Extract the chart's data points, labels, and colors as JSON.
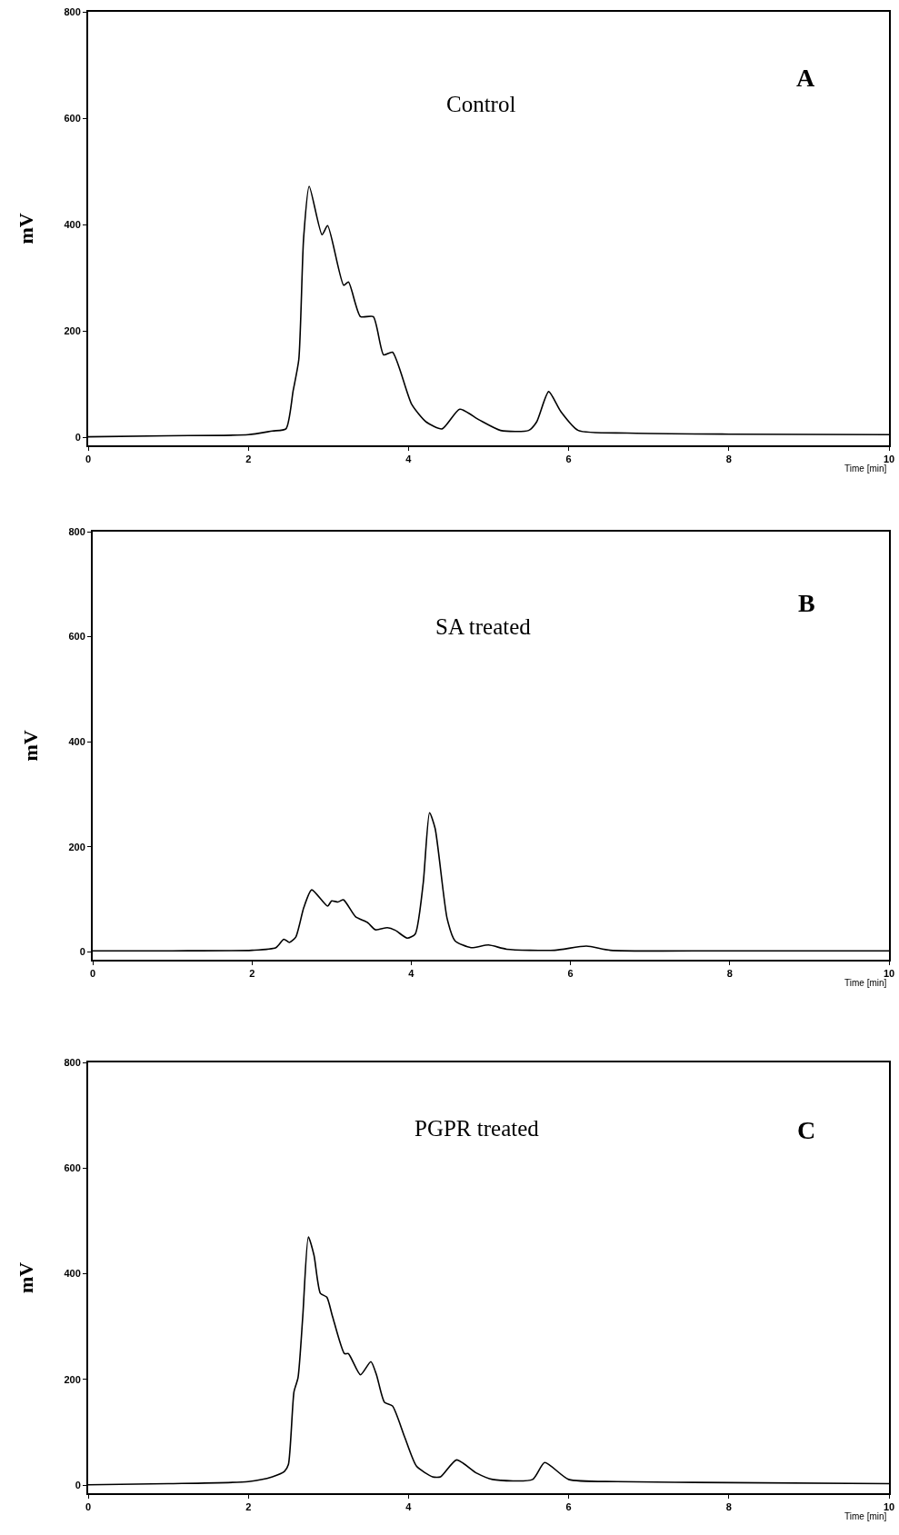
{
  "chart_data": [
    {
      "type": "line",
      "title": "Control",
      "annotations": [
        "A"
      ],
      "xlabel": "Time [min]",
      "ylabel": "mV",
      "xlim": [
        0,
        10
      ],
      "xticks": [
        0,
        2,
        4,
        6,
        8,
        10
      ],
      "ylim": [
        -15,
        800
      ],
      "yticks": [
        0,
        200,
        400,
        600,
        800
      ],
      "grid": false,
      "x": [
        0,
        1,
        2,
        2.3,
        2.47,
        2.56,
        2.63,
        2.69,
        2.76,
        2.92,
        2.99,
        3.19,
        3.25,
        3.4,
        3.56,
        3.69,
        3.8,
        4.04,
        4.22,
        4.42,
        4.64,
        4.88,
        5.15,
        5.5,
        5.6,
        5.75,
        5.9,
        6.12,
        6.73,
        8,
        10
      ],
      "series": [
        {
          "color": "#000000",
          "values": [
            1,
            3,
            5,
            12,
            16,
            88,
            146,
            374,
            472,
            381,
            398,
            286,
            292,
            227,
            227,
            155,
            160,
            62,
            29,
            16,
            53,
            33,
            13,
            13,
            29,
            86,
            49,
            13,
            8,
            6,
            5
          ]
        }
      ]
    },
    {
      "type": "line",
      "title": "SA treated",
      "annotations": [
        "B"
      ],
      "xlabel": "Time [min]",
      "ylabel": "mV",
      "xlim": [
        0,
        10
      ],
      "xticks": [
        0,
        2,
        4,
        6,
        8,
        10
      ],
      "ylim": [
        -15,
        800
      ],
      "yticks": [
        0,
        200,
        400,
        600,
        800
      ],
      "grid": false,
      "x": [
        0,
        1,
        2,
        2.3,
        2.4,
        2.47,
        2.55,
        2.65,
        2.75,
        2.95,
        3,
        3.08,
        3.15,
        3.3,
        3.45,
        3.55,
        3.7,
        3.8,
        3.95,
        4.05,
        4.15,
        4.23,
        4.3,
        4.45,
        4.55,
        4.75,
        4.97,
        5.2,
        5.8,
        6.2,
        6.5,
        8,
        10
      ],
      "series": [
        {
          "color": "#000000",
          "values": [
            2,
            2,
            3,
            8,
            24,
            18,
            28,
            84,
            118,
            87,
            97,
            95,
            99,
            67,
            56,
            42,
            46,
            41,
            26,
            34,
            130,
            265,
            235,
            64,
            21,
            8,
            13,
            5,
            3,
            11,
            3,
            2,
            2
          ]
        }
      ]
    },
    {
      "type": "line",
      "title": "PGPR treated",
      "annotations": [
        "C"
      ],
      "xlabel": "Time [min]",
      "ylabel": "mV",
      "xlim": [
        0,
        10
      ],
      "xticks": [
        0,
        2,
        4,
        6,
        8,
        10
      ],
      "ylim": [
        -15,
        800
      ],
      "yticks": [
        0,
        200,
        400,
        600,
        800
      ],
      "grid": false,
      "x": [
        0,
        1,
        2,
        2.3,
        2.45,
        2.5,
        2.57,
        2.62,
        2.68,
        2.75,
        2.82,
        2.9,
        2.98,
        3.05,
        3.2,
        3.25,
        3.4,
        3.53,
        3.6,
        3.7,
        3.8,
        3.95,
        4.1,
        4.3,
        4.4,
        4.6,
        4.85,
        5.05,
        5.55,
        5.7,
        6,
        6.6,
        8,
        10
      ],
      "series": [
        {
          "color": "#000000",
          "values": [
            1,
            3,
            7,
            16,
            26,
            39,
            177,
            203,
            320,
            470,
            435,
            363,
            356,
            320,
            249,
            249,
            209,
            234,
            209,
            157,
            150,
            92,
            36,
            16,
            16,
            48,
            23,
            11,
            11,
            43,
            11,
            7,
            5,
            3
          ]
        }
      ]
    }
  ]
}
